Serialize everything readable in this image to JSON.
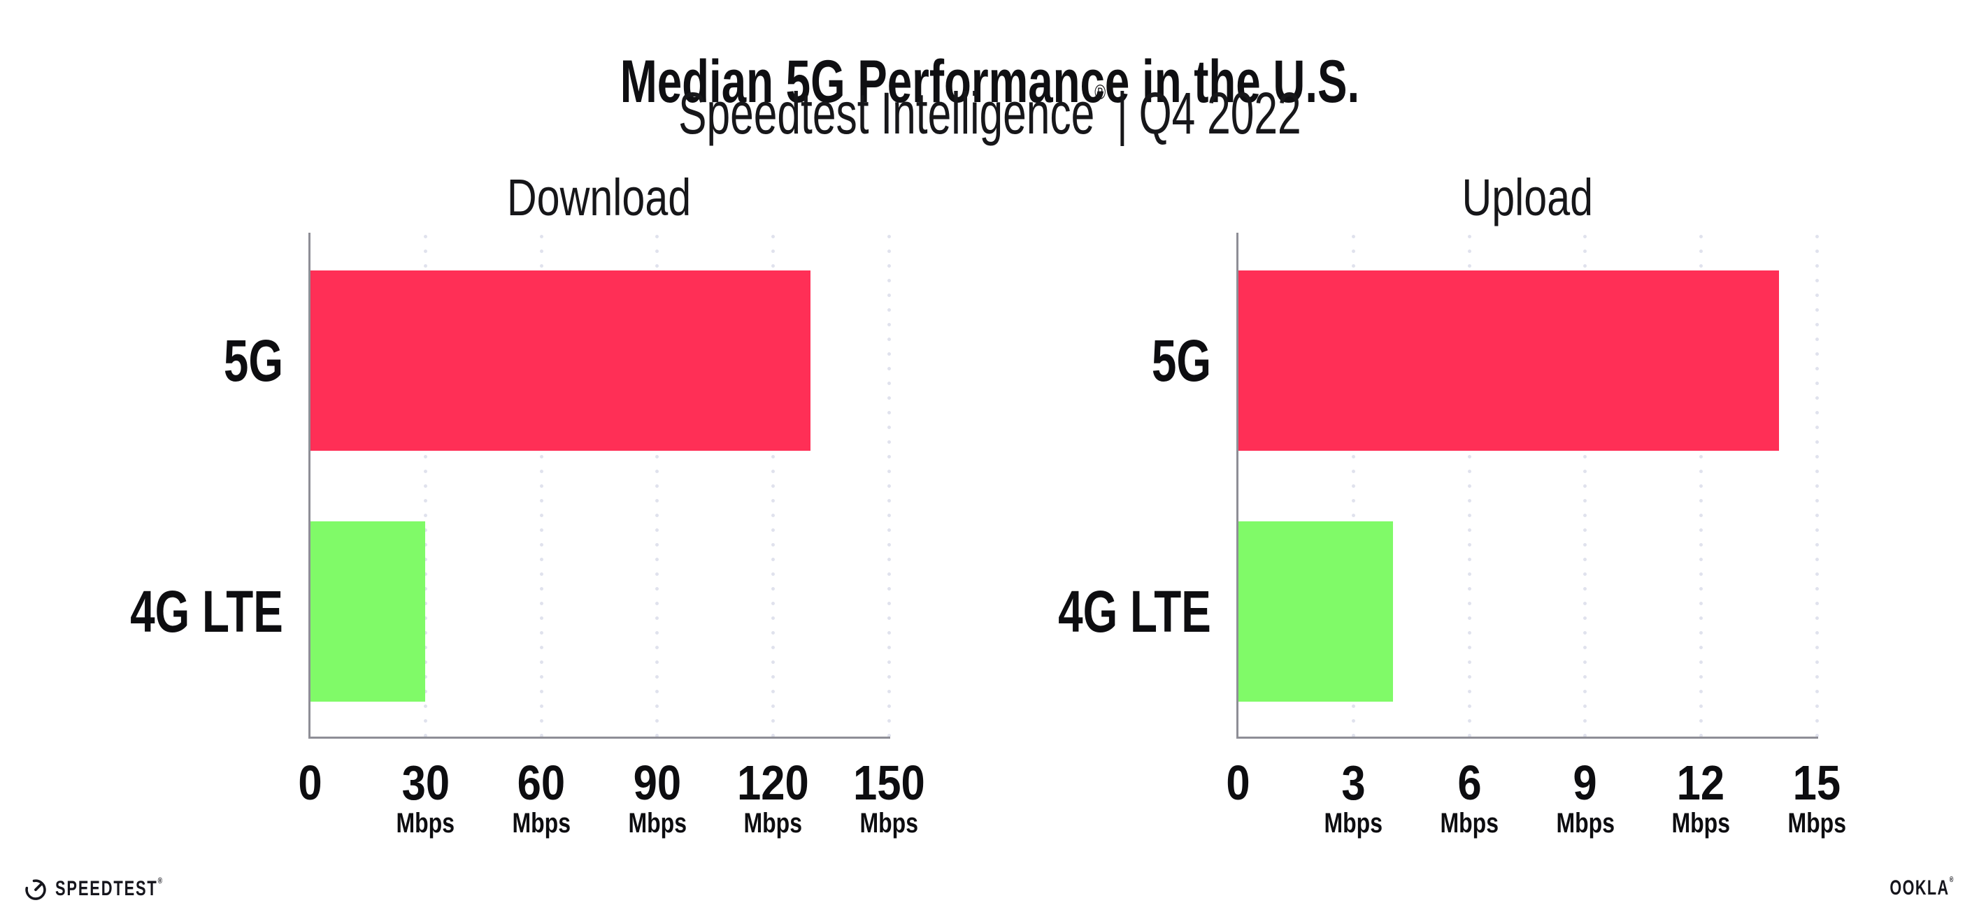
{
  "header": {
    "title": "Median 5G Performance in the U.S.",
    "subtitle_brand": "Speedtest Intelligence",
    "subtitle_reg": "®",
    "subtitle_separator": "|",
    "subtitle_period": "Q4 2022"
  },
  "chart_data": [
    {
      "type": "bar",
      "orientation": "horizontal",
      "title": "Download",
      "categories": [
        "5G",
        "4G LTE"
      ],
      "values": [
        129.5,
        29.8
      ],
      "unit": "Mbps",
      "xlim": [
        0,
        150
      ],
      "xticks": [
        0,
        30,
        60,
        90,
        120,
        150
      ],
      "tick_unit_label": "Mbps",
      "bar_colors": [
        "#ff2f56",
        "#80fa68"
      ],
      "grid": "dotted vertical gridlines at major ticks",
      "legend": "none"
    },
    {
      "type": "bar",
      "orientation": "horizontal",
      "title": "Upload",
      "categories": [
        "5G",
        "4G LTE"
      ],
      "values": [
        14.0,
        4.0
      ],
      "unit": "Mbps",
      "xlim": [
        0,
        15
      ],
      "xticks": [
        0,
        3,
        6,
        9,
        12,
        15
      ],
      "tick_unit_label": "Mbps",
      "bar_colors": [
        "#ff2f56",
        "#80fa68"
      ],
      "grid": "dotted vertical gridlines at major ticks",
      "legend": "none"
    }
  ],
  "footer": {
    "speedtest_label": "SPEEDTEST",
    "speedtest_reg": "®",
    "ookla_label": "OOKLA",
    "ookla_reg": "®"
  },
  "colors": {
    "bar_5g": "#ff2f56",
    "bar_4g_lte": "#80fa68",
    "axis": "#8e8e96",
    "gridline": "#e0e2ed",
    "text": "#0f0f12",
    "background": "#ffffff"
  }
}
